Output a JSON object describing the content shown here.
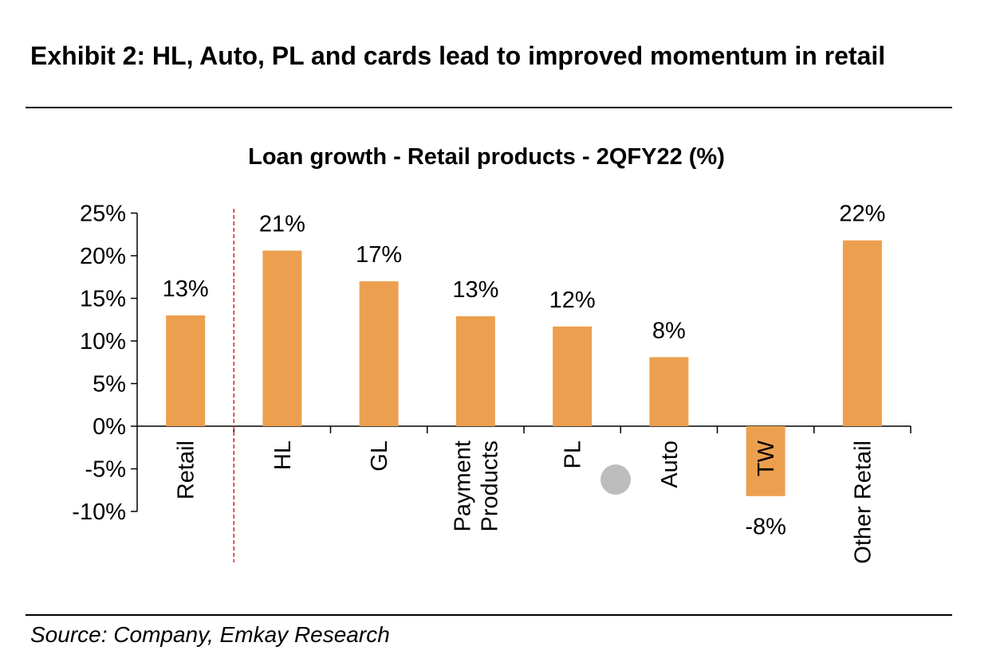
{
  "exhibit_title": "Exhibit 2: HL, Auto, PL and cards lead to improved momentum in retail",
  "source": "Source: Company, Emkay Research",
  "colors": {
    "bar": "#ECA04F",
    "divider": "#E0201B",
    "marker": "#BDBDBD"
  },
  "chart_data": {
    "type": "bar",
    "title": "Loan growth - Retail products - 2QFY22 (%)",
    "xlabel": "",
    "ylabel": "",
    "categories": [
      "Retail",
      "HL",
      "GL",
      "Payment\nProducts",
      "PL",
      "Auto",
      "TW",
      "Other Retail"
    ],
    "values": [
      13,
      20.6,
      17,
      12.9,
      11.7,
      8.1,
      -8.2,
      21.8
    ],
    "data_labels": [
      "13%",
      "21%",
      "17%",
      "13%",
      "12%",
      "8%",
      "-8%",
      "22%"
    ],
    "ylim": [
      -10,
      25
    ],
    "yticks": [
      {
        "value": 25,
        "label": "25%"
      },
      {
        "value": 20,
        "label": "20%"
      },
      {
        "value": 15,
        "label": "15%"
      },
      {
        "value": 10,
        "label": "10%"
      },
      {
        "value": 5,
        "label": "5%"
      },
      {
        "value": 0,
        "label": "0%"
      },
      {
        "value": -5,
        "label": "-5%"
      },
      {
        "value": -10,
        "label": "-10%"
      }
    ],
    "grid": false,
    "legend": "none"
  }
}
